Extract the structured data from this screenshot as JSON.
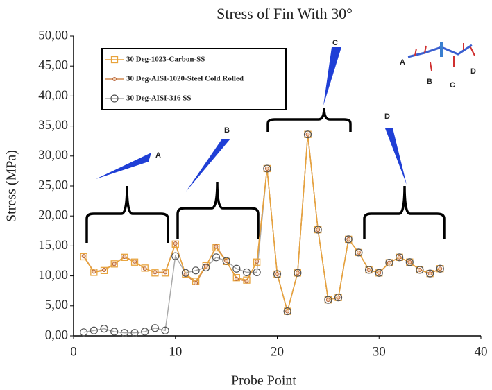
{
  "chart_data": {
    "type": "line",
    "title": "Stress of Fin With 30°",
    "x_label": "Probe Point",
    "y_label": "Stress (MPa)",
    "x": [
      1,
      2,
      3,
      4,
      5,
      6,
      7,
      8,
      9,
      10,
      11,
      12,
      13,
      14,
      15,
      16,
      17,
      18,
      19,
      20,
      21,
      22,
      23,
      24,
      25,
      26,
      27,
      28,
      29,
      30,
      31,
      32,
      33,
      34,
      35,
      36
    ],
    "series": [
      {
        "name": "30 Deg-1023-Carbon-SS",
        "color": "#e8a33c",
        "line_color": "#e8a33c",
        "marker": "square",
        "values": [
          13.2,
          10.6,
          10.9,
          12.0,
          13.1,
          12.3,
          11.3,
          10.5,
          10.5,
          15.3,
          10.3,
          9.1,
          11.7,
          14.7,
          12.4,
          9.7,
          9.3,
          12.3,
          27.9,
          10.3,
          4.1,
          10.5,
          33.6,
          17.7,
          6.0,
          6.4,
          16.1,
          13.9,
          11.0,
          10.5,
          12.2,
          13.1,
          12.3,
          11.0,
          10.4,
          11.2
        ]
      },
      {
        "name": "30 Deg-AISI-1020-Steel Cold Rolled",
        "color": "#b8643a",
        "line_color": "#d08a50",
        "marker": "dot",
        "values": [
          13.3,
          10.7,
          11.0,
          12.0,
          13.2,
          12.4,
          11.2,
          10.6,
          10.6,
          15.4,
          10.2,
          8.8,
          11.6,
          14.9,
          12.5,
          9.5,
          9.1,
          12.4,
          27.9,
          10.3,
          4.1,
          10.5,
          33.6,
          17.7,
          6.0,
          6.4,
          16.1,
          13.9,
          11.0,
          10.5,
          12.2,
          13.1,
          12.3,
          11.0,
          10.4,
          11.2
        ]
      },
      {
        "name": "30 Deg-AISI-316 SS",
        "color": "#555555",
        "line_color": "#aaaaaa",
        "marker": "circle",
        "values": [
          0.6,
          0.9,
          1.2,
          0.7,
          0.5,
          0.5,
          0.7,
          1.3,
          0.9,
          13.3,
          10.5,
          10.9,
          11.4,
          13.1,
          12.5,
          11.2,
          10.6,
          10.6,
          27.9,
          10.3,
          4.1,
          10.5,
          33.6,
          17.7,
          6.0,
          6.4,
          16.1,
          13.9,
          11.0,
          10.5,
          12.2,
          13.1,
          12.3,
          11.0,
          10.4,
          11.2
        ]
      }
    ],
    "xlim": [
      0,
      40
    ],
    "xticks": [
      0,
      10,
      20,
      30,
      40
    ],
    "ylim": [
      0,
      50
    ],
    "yticks": [
      {
        "value": 0,
        "label": "0,00"
      },
      {
        "value": 5,
        "label": "5,00"
      },
      {
        "value": 10,
        "label": "10,00"
      },
      {
        "value": 15,
        "label": "15,00"
      },
      {
        "value": 20,
        "label": "20,00"
      },
      {
        "value": 25,
        "label": "25,00"
      },
      {
        "value": 30,
        "label": "30,00"
      },
      {
        "value": 35,
        "label": "35,00"
      },
      {
        "value": 40,
        "label": "40,00"
      },
      {
        "value": 45,
        "label": "45,00"
      },
      {
        "value": 50,
        "label": "50,00"
      }
    ],
    "legend": "upper left",
    "annotations": [
      "A",
      "B",
      "C",
      "D"
    ],
    "inset_labels": [
      "A",
      "B",
      "C",
      "D"
    ]
  }
}
